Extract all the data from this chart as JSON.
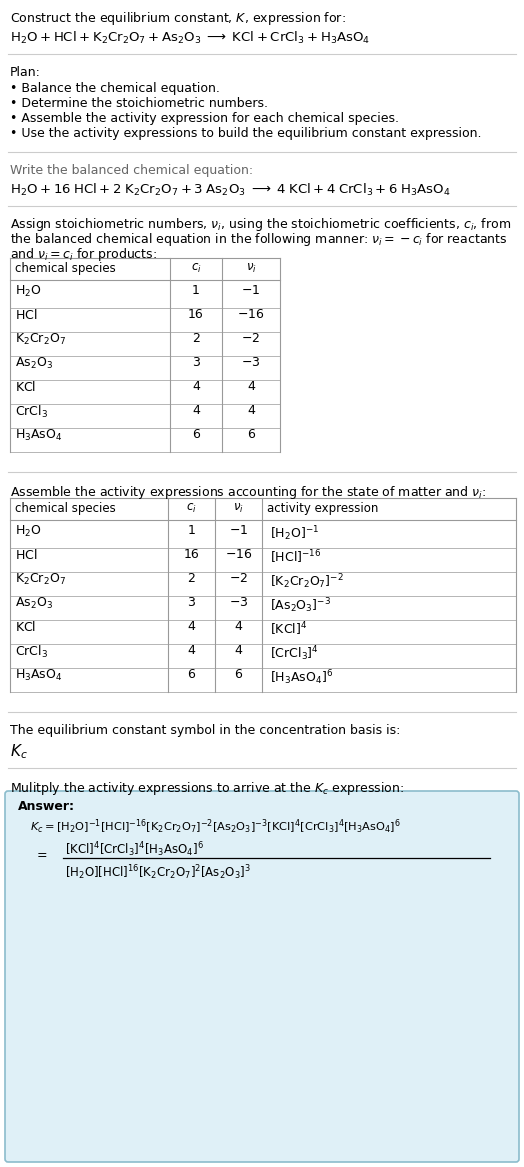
{
  "bg_color": "#ffffff",
  "text_color": "#000000",
  "title_line1": "Construct the equilibrium constant, $K$, expression for:",
  "title_line2": "$\\mathrm{H_2O + HCl + K_2Cr_2O_7 + As_2O_3}\\;\\longrightarrow\\;\\mathrm{KCl + CrCl_3 + H_3AsO_4}$",
  "plan_header": "Plan:",
  "plan_bullets": [
    "• Balance the chemical equation.",
    "• Determine the stoichiometric numbers.",
    "• Assemble the activity expression for each chemical species.",
    "• Use the activity expressions to build the equilibrium constant expression."
  ],
  "balanced_header": "Write the balanced chemical equation:",
  "balanced_eq": "$\\mathrm{H_2O + 16\\; HCl + 2\\; K_2Cr_2O_7 + 3\\; As_2O_3}\\;\\longrightarrow\\;\\mathrm{4\\; KCl + 4\\; CrCl_3 + 6\\; H_3AsO_4}$",
  "stoich_line1": "Assign stoichiometric numbers, $\\nu_i$, using the stoichiometric coefficients, $c_i$, from",
  "stoich_line2": "the balanced chemical equation in the following manner: $\\nu_i = -c_i$ for reactants",
  "stoich_line3": "and $\\nu_i = c_i$ for products:",
  "table1_cols": [
    "chemical species",
    "$c_i$",
    "$\\nu_i$"
  ],
  "table1_rows": [
    [
      "$\\mathrm{H_2O}$",
      "1",
      "$-1$"
    ],
    [
      "$\\mathrm{HCl}$",
      "16",
      "$-16$"
    ],
    [
      "$\\mathrm{K_2Cr_2O_7}$",
      "2",
      "$-2$"
    ],
    [
      "$\\mathrm{As_2O_3}$",
      "3",
      "$-3$"
    ],
    [
      "$\\mathrm{KCl}$",
      "4",
      "4"
    ],
    [
      "$\\mathrm{CrCl_3}$",
      "4",
      "4"
    ],
    [
      "$\\mathrm{H_3AsO_4}$",
      "6",
      "6"
    ]
  ],
  "activity_header": "Assemble the activity expressions accounting for the state of matter and $\\nu_i$:",
  "table2_cols": [
    "chemical species",
    "$c_i$",
    "$\\nu_i$",
    "activity expression"
  ],
  "table2_rows": [
    [
      "$\\mathrm{H_2O}$",
      "1",
      "$-1$",
      "$[\\mathrm{H_2O}]^{-1}$"
    ],
    [
      "$\\mathrm{HCl}$",
      "16",
      "$-16$",
      "$[\\mathrm{HCl}]^{-16}$"
    ],
    [
      "$\\mathrm{K_2Cr_2O_7}$",
      "2",
      "$-2$",
      "$[\\mathrm{K_2Cr_2O_7}]^{-2}$"
    ],
    [
      "$\\mathrm{As_2O_3}$",
      "3",
      "$-3$",
      "$[\\mathrm{As_2O_3}]^{-3}$"
    ],
    [
      "$\\mathrm{KCl}$",
      "4",
      "4",
      "$[\\mathrm{KCl}]^{4}$"
    ],
    [
      "$\\mathrm{CrCl_3}$",
      "4",
      "4",
      "$[\\mathrm{CrCl_3}]^{4}$"
    ],
    [
      "$\\mathrm{H_3AsO_4}$",
      "6",
      "6",
      "$[\\mathrm{H_3AsO_4}]^{6}$"
    ]
  ],
  "kc_header": "The equilibrium constant symbol in the concentration basis is:",
  "kc_symbol": "$K_c$",
  "multiply_header": "Mulitply the activity expressions to arrive at the $K_c$ expression:",
  "answer_label": "Answer:",
  "answer_line1": "$K_c = [\\mathrm{H_2O}]^{-1}[\\mathrm{HCl}]^{-16}[\\mathrm{K_2Cr_2O_7}]^{-2}[\\mathrm{As_2O_3}]^{-3}[\\mathrm{KCl}]^{4}[\\mathrm{CrCl_3}]^{4}[\\mathrm{H_3AsO_4}]^{6}$",
  "answer_eq_sign": "$=$",
  "answer_line2_num": "$[\\mathrm{KCl}]^{4}[\\mathrm{CrCl_3}]^{4}[\\mathrm{H_3AsO_4}]^{6}$",
  "answer_line2_den": "$[\\mathrm{H_2O}][\\mathrm{HCl}]^{16}[\\mathrm{K_2Cr_2O_7}]^{2}[\\mathrm{As_2O_3}]^{3}$",
  "answer_box_color": "#dff0f7",
  "answer_box_border": "#8bbccc",
  "table_line_color": "#999999",
  "hline_color": "#cccccc"
}
